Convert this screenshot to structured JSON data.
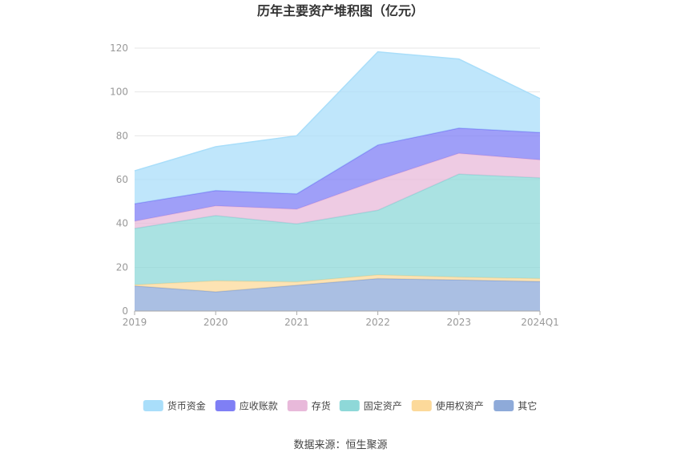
{
  "chart_data": {
    "type": "area",
    "stacked": true,
    "title": "历年主要资产堆积图（亿元）",
    "x": [
      "2019",
      "2020",
      "2021",
      "2022",
      "2023",
      "2024Q1"
    ],
    "ylim": [
      0,
      120
    ],
    "yticks": [
      0,
      20,
      40,
      60,
      80,
      100,
      120
    ],
    "grid": true,
    "legend_position": "bottom",
    "series": [
      {
        "name": "其它",
        "color": "#8eaad9",
        "values": [
          11.5,
          8.8,
          11.8,
          14.8,
          14.2,
          13.5
        ]
      },
      {
        "name": "使用权资产",
        "color": "#fcd99a",
        "values": [
          0.5,
          5.0,
          1.5,
          1.7,
          1.3,
          1.3
        ]
      },
      {
        "name": "固定资产",
        "color": "#8ed8d8",
        "values": [
          25.7,
          29.8,
          26.5,
          29.5,
          47.0,
          46.0
        ]
      },
      {
        "name": "存货",
        "color": "#e8b9da",
        "values": [
          3.3,
          4.4,
          6.7,
          13.8,
          9.5,
          8.2
        ]
      },
      {
        "name": "应收账款",
        "color": "#7f7ff5",
        "values": [
          8.0,
          7.0,
          7.0,
          16.0,
          11.5,
          12.5
        ]
      },
      {
        "name": "货币资金",
        "color": "#a9defa",
        "values": [
          15.0,
          20.0,
          26.5,
          42.5,
          31.5,
          15.5
        ]
      }
    ],
    "legend_order": [
      "货币资金",
      "应收账款",
      "存货",
      "固定资产",
      "使用权资产",
      "其它"
    ]
  },
  "source": "数据来源：恒生聚源"
}
